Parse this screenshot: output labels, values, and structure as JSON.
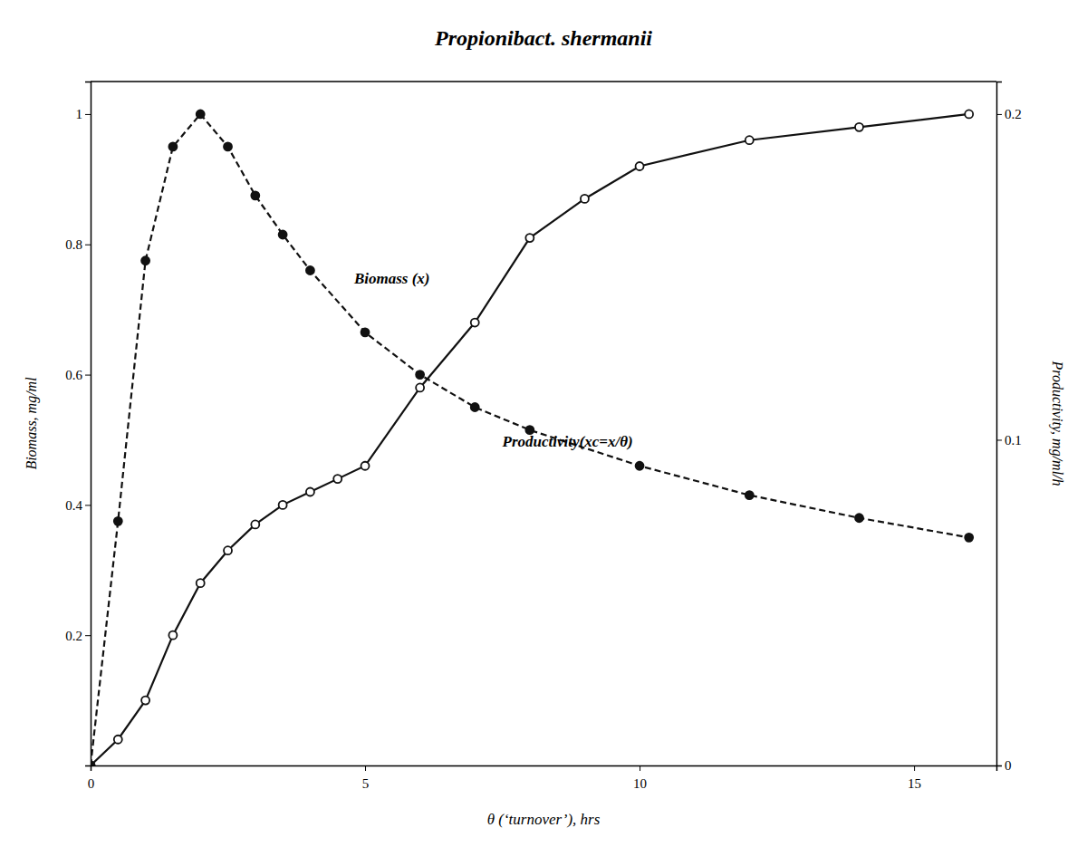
{
  "chart_data": {
    "type": "line",
    "title": "Propionibact. shermanii",
    "x_label": "θ (‘turnover’), hrs",
    "y_label": "Biomass, mg/ml",
    "y2_label": "Productivity, mg/ml/h",
    "xlim": [
      0,
      16.5
    ],
    "ylim": [
      0,
      1.05
    ],
    "y2lim": [
      0,
      0.21
    ],
    "xticks": [
      0,
      5,
      10,
      15
    ],
    "yticks": [
      0.2,
      0.4,
      0.6,
      0.8,
      1
    ],
    "y2ticks": [
      0,
      0.1,
      0.2
    ],
    "grid": false,
    "series": [
      {
        "x": [
          0,
          0.5,
          1.0,
          1.5,
          2.0,
          2.5,
          3.0,
          3.5,
          4.0,
          4.5,
          5.0,
          6.0,
          7.0,
          8.0,
          9.0,
          10.0,
          12.0,
          14.0,
          16.0
        ],
        "values": [
          0.0,
          0.04,
          0.1,
          0.2,
          0.28,
          0.33,
          0.37,
          0.4,
          0.42,
          0.44,
          0.46,
          0.58,
          0.68,
          0.81,
          0.87,
          0.92,
          0.96,
          0.98,
          1.0
        ],
        "color": "#111111",
        "marker": "open-circle",
        "line_style": "solid",
        "axis": "y"
      },
      {
        "x": [
          0,
          0.5,
          1.0,
          1.5,
          2.0,
          2.5,
          3.0,
          3.5,
          4.0,
          5.0,
          6.0,
          7.0,
          8.0,
          10.0,
          12.0,
          14.0,
          16.0
        ],
        "values": [
          0.0,
          0.075,
          0.155,
          0.19,
          0.2,
          0.19,
          0.175,
          0.163,
          0.152,
          0.133,
          0.12,
          0.11,
          0.103,
          0.092,
          0.083,
          0.076,
          0.07
        ],
        "color": "#111111",
        "marker": "circle",
        "line_style": "dashed",
        "axis": "y2"
      }
    ],
    "annotations": [
      {
        "text": "Biomass (x)",
        "x": 4.8,
        "y": 0.74
      },
      {
        "text": "Productivity(xc=x/θ)",
        "x": 7.5,
        "y": 0.49
      }
    ]
  }
}
